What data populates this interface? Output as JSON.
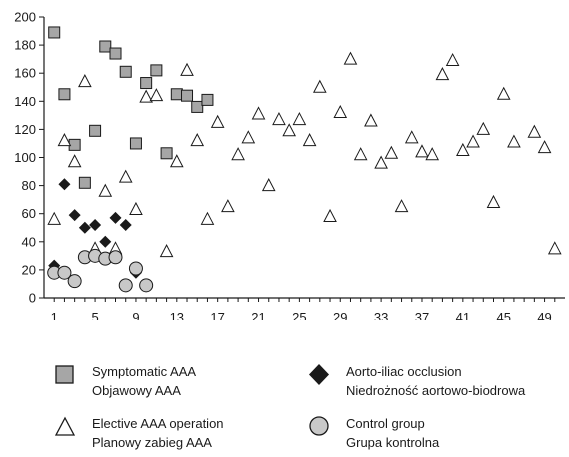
{
  "chart_data": {
    "type": "scatter",
    "title": "",
    "xlabel": "",
    "ylabel": "",
    "xlim": [
      0,
      51
    ],
    "ylim": [
      0,
      200
    ],
    "x_ticks": [
      1,
      5,
      9,
      13,
      17,
      21,
      25,
      29,
      33,
      37,
      41,
      45,
      49
    ],
    "y_ticks": [
      0,
      20,
      40,
      60,
      80,
      100,
      120,
      140,
      160,
      180,
      200
    ],
    "grid": false,
    "legend_placement": "bottom",
    "series": [
      {
        "name": "Symptomatic AAA",
        "name_secondary": "Objawowy AAA",
        "marker": "square",
        "color": "#a6a6a6",
        "points": [
          [
            1,
            189
          ],
          [
            2,
            145
          ],
          [
            3,
            109
          ],
          [
            4,
            82
          ],
          [
            5,
            119
          ],
          [
            6,
            179
          ],
          [
            7,
            174
          ],
          [
            8,
            161
          ],
          [
            9,
            110
          ],
          [
            10,
            153
          ],
          [
            11,
            162
          ],
          [
            12,
            103
          ],
          [
            13,
            145
          ],
          [
            14,
            144
          ],
          [
            15,
            136
          ],
          [
            16,
            141
          ]
        ]
      },
      {
        "name": "Aorto-iliac occlusion",
        "name_secondary": "Niedrożność aortowo-biodrowa",
        "marker": "diamond",
        "color": "#1a1a1a",
        "points": [
          [
            1,
            23
          ],
          [
            2,
            81
          ],
          [
            3,
            59
          ],
          [
            4,
            50
          ],
          [
            5,
            52
          ],
          [
            6,
            40
          ],
          [
            7,
            57
          ],
          [
            8,
            52
          ],
          [
            9,
            18
          ]
        ]
      },
      {
        "name": "Elective AAA operation",
        "name_secondary": "Planowy zabieg AAA",
        "marker": "triangle",
        "color": "#ffffff",
        "points": [
          [
            1,
            56
          ],
          [
            2,
            112
          ],
          [
            3,
            97
          ],
          [
            4,
            154
          ],
          [
            5,
            35
          ],
          [
            6,
            76
          ],
          [
            7,
            35
          ],
          [
            8,
            86
          ],
          [
            9,
            63
          ],
          [
            10,
            143
          ],
          [
            11,
            144
          ],
          [
            12,
            33
          ],
          [
            13,
            97
          ],
          [
            14,
            162
          ],
          [
            15,
            112
          ],
          [
            16,
            56
          ],
          [
            17,
            125
          ],
          [
            18,
            65
          ],
          [
            19,
            102
          ],
          [
            20,
            114
          ],
          [
            21,
            131
          ],
          [
            22,
            80
          ],
          [
            23,
            127
          ],
          [
            24,
            119
          ],
          [
            25,
            127
          ],
          [
            26,
            112
          ],
          [
            27,
            150
          ],
          [
            28,
            58
          ],
          [
            29,
            132
          ],
          [
            30,
            170
          ],
          [
            31,
            102
          ],
          [
            32,
            126
          ],
          [
            33,
            96
          ],
          [
            34,
            103
          ],
          [
            35,
            65
          ],
          [
            36,
            114
          ],
          [
            37,
            104
          ],
          [
            38,
            102
          ],
          [
            39,
            159
          ],
          [
            40,
            169
          ],
          [
            41,
            105
          ],
          [
            42,
            111
          ],
          [
            43,
            120
          ],
          [
            44,
            68
          ],
          [
            45,
            145
          ],
          [
            46,
            111
          ],
          [
            48,
            118
          ],
          [
            49,
            107
          ],
          [
            50,
            35
          ]
        ]
      },
      {
        "name": "Control group",
        "name_secondary": "Grupa kontrolna",
        "marker": "circle",
        "color": "#c8c8c8",
        "points": [
          [
            1,
            18
          ],
          [
            2,
            18
          ],
          [
            3,
            12
          ],
          [
            4,
            29
          ],
          [
            5,
            30
          ],
          [
            6,
            28
          ],
          [
            7,
            29
          ],
          [
            8,
            9
          ],
          [
            9,
            21
          ],
          [
            10,
            9
          ]
        ]
      }
    ]
  },
  "legend": [
    {
      "line1": "Symptomatic AAA",
      "line2": "Objawowy AAA",
      "marker": "square"
    },
    {
      "line1": "Aorto-iliac occlusion",
      "line2": "Niedrożność aortowo-biodrowa",
      "marker": "diamond"
    },
    {
      "line1": "Elective AAA operation",
      "line2": "Planowy zabieg AAA",
      "marker": "triangle"
    },
    {
      "line1": "Control group",
      "line2": "Grupa kontrolna",
      "marker": "circle"
    }
  ]
}
